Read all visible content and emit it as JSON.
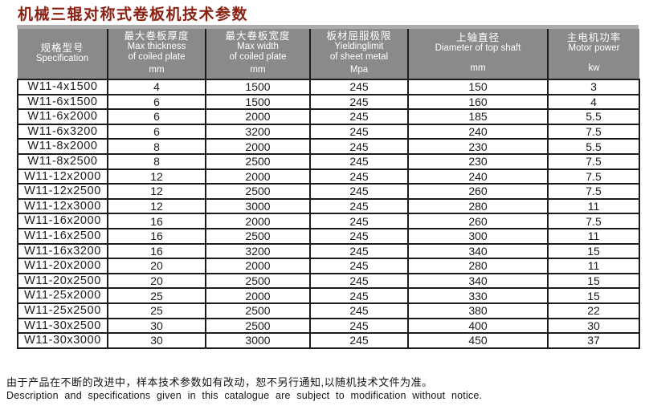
{
  "page": {
    "title": "机械三辊对称式卷板机技术参数"
  },
  "table": {
    "columns": [
      {
        "lines": [
          "规格型号",
          "Specification"
        ],
        "unit": ""
      },
      {
        "lines": [
          "最大卷板厚度",
          "Max thickness",
          "of coiled plate"
        ],
        "unit": "mm"
      },
      {
        "lines": [
          "最大卷板宽度",
          "Max width",
          "of coiled plate"
        ],
        "unit": "mm"
      },
      {
        "lines": [
          "板材屈服极限",
          "Yieldinglimit",
          "of sheet metal"
        ],
        "unit": "Mpa"
      },
      {
        "lines": [
          "上轴直径",
          "Diameter of top shaft"
        ],
        "unit": "mm"
      },
      {
        "lines": [
          "主电机功率",
          "Motor power"
        ],
        "unit": "kw"
      }
    ],
    "rows": [
      [
        "W11-4x1500",
        "4",
        "1500",
        "245",
        "150",
        "3"
      ],
      [
        "W11-6x1500",
        "6",
        "1500",
        "245",
        "160",
        "4"
      ],
      [
        "W11-6x2000",
        "6",
        "2000",
        "245",
        "185",
        "5.5"
      ],
      [
        "W11-6x3200",
        "6",
        "3200",
        "245",
        "240",
        "7.5"
      ],
      [
        "W11-8x2000",
        "8",
        "2000",
        "245",
        "230",
        "5.5"
      ],
      [
        "W11-8x2500",
        "8",
        "2500",
        "245",
        "230",
        "7.5"
      ],
      [
        "W11-12x2000",
        "12",
        "2000",
        "245",
        "240",
        "7.5"
      ],
      [
        "W11-12x2500",
        "12",
        "2500",
        "245",
        "260",
        "7.5"
      ],
      [
        "W11-12x3000",
        "12",
        "3000",
        "245",
        "280",
        "11"
      ],
      [
        "W11-16x2000",
        "16",
        "2000",
        "245",
        "260",
        "7.5"
      ],
      [
        "W11-16x2500",
        "16",
        "2500",
        "245",
        "300",
        "11"
      ],
      [
        "W11-16x3200",
        "16",
        "3200",
        "245",
        "340",
        "15"
      ],
      [
        "W11-20x2000",
        "20",
        "2000",
        "245",
        "280",
        "11"
      ],
      [
        "W11-20x2500",
        "20",
        "2500",
        "245",
        "340",
        "15"
      ],
      [
        "W11-25x2000",
        "25",
        "2000",
        "245",
        "330",
        "15"
      ],
      [
        "W11-25x2500",
        "25",
        "2500",
        "245",
        "380",
        "22"
      ],
      [
        "W11-30x2500",
        "30",
        "2500",
        "245",
        "400",
        "30"
      ],
      [
        "W11-30x3000",
        "30",
        "3000",
        "245",
        "450",
        "37"
      ]
    ]
  },
  "footer": {
    "note_zh": "由于产品在不断的改进中，样本技术参数如有改动，恕不另行通知,以随机技术文件为准。",
    "note_en": "Description and specifications given in this catalogue are subject to modification without notice."
  },
  "colors": {
    "title_color": "#8a2012",
    "header_bg": "#8a8a8a",
    "header_top_strip": "#acacac",
    "header_text": "#ffffff",
    "border_color": "#1c1c1c",
    "body_text": "#1a1a1a",
    "page_bg": "#ffffff"
  }
}
